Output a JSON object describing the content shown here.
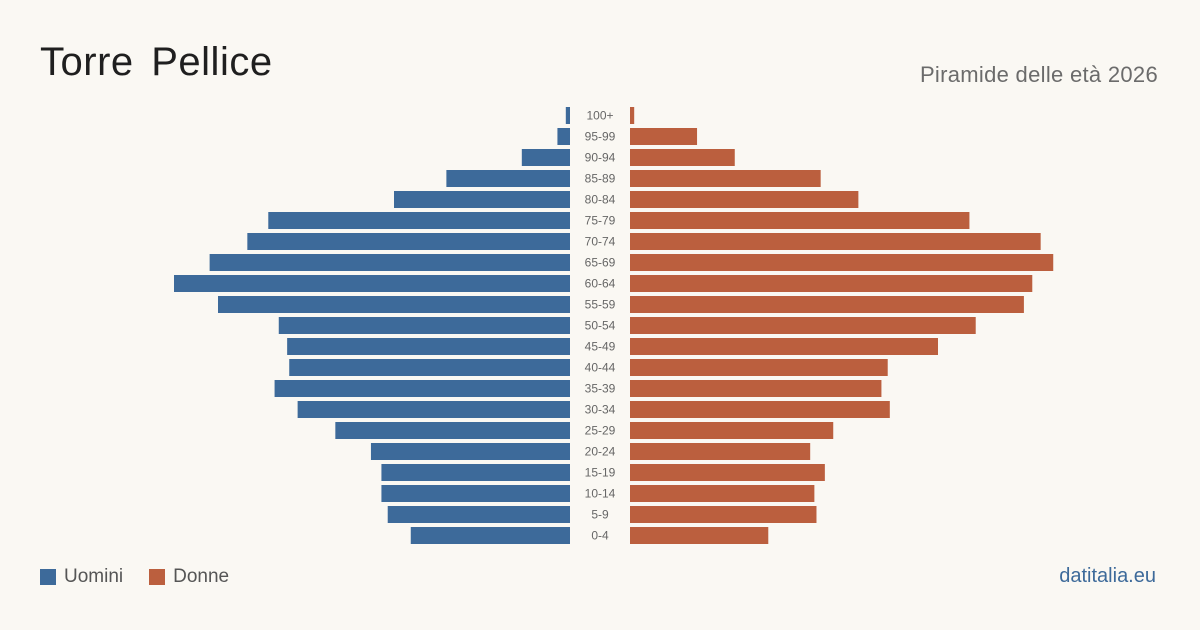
{
  "header": {
    "title": "Torre Pellice",
    "subtitle": "Piramide delle età 2026"
  },
  "legend": {
    "men_label": "Uomini",
    "women_label": "Donne"
  },
  "footer": {
    "site": "datitalia.eu"
  },
  "colors": {
    "men": "#3d6a9a",
    "women": "#bb5f3e",
    "background": "#faf8f3"
  },
  "chart_data": {
    "type": "bar",
    "orientation": "horizontal-pyramid",
    "categories": [
      "100+",
      "95-99",
      "90-94",
      "85-89",
      "80-84",
      "75-79",
      "70-74",
      "65-69",
      "60-64",
      "55-59",
      "50-54",
      "45-49",
      "40-44",
      "35-39",
      "30-34",
      "25-29",
      "20-24",
      "15-19",
      "10-14",
      "5-9",
      "0-4"
    ],
    "series": [
      {
        "name": "Uomini",
        "values": [
          2,
          6,
          23,
          59,
          84,
          144,
          154,
          172,
          189,
          168,
          139,
          135,
          134,
          141,
          130,
          112,
          95,
          90,
          90,
          87,
          76
        ]
      },
      {
        "name": "Donne",
        "values": [
          2,
          32,
          50,
          91,
          109,
          162,
          196,
          202,
          192,
          188,
          165,
          147,
          123,
          120,
          124,
          97,
          86,
          93,
          88,
          89,
          66
        ]
      }
    ],
    "xlim": [
      0,
      210
    ]
  }
}
